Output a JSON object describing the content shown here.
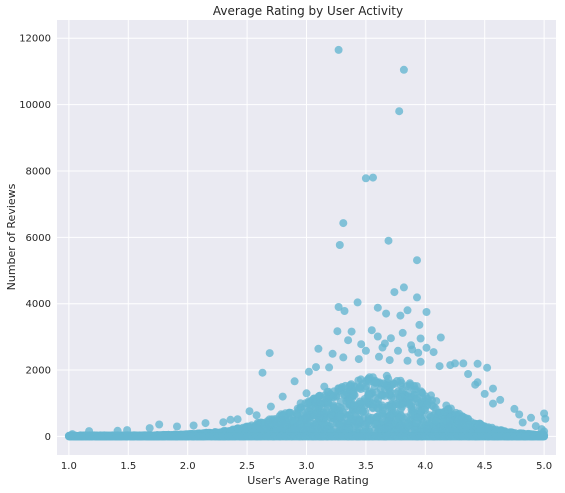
{
  "chart_data": {
    "type": "scatter",
    "title": "Average Rating by User Activity",
    "xlabel": "User's Average Rating",
    "ylabel": "Number of Reviews",
    "xlim": [
      0.9,
      5.1
    ],
    "ylim": [
      -560,
      12550
    ],
    "xticks": [
      1.0,
      1.5,
      2.0,
      2.5,
      3.0,
      3.5,
      4.0,
      4.5,
      5.0
    ],
    "xtick_labels": [
      "1.0",
      "1.5",
      "2.0",
      "2.5",
      "3.0",
      "3.5",
      "4.0",
      "4.5",
      "5.0"
    ],
    "yticks": [
      0,
      2000,
      4000,
      6000,
      8000,
      10000,
      12000
    ],
    "ytick_labels": [
      "0",
      "2000",
      "4000",
      "6000",
      "8000",
      "10000",
      "12000"
    ],
    "grid": true,
    "colors": {
      "background": "#eaeaf2",
      "grid": "#ffffff",
      "marker": "#67b7d1"
    },
    "marker_opacity": 0.8,
    "series": [
      {
        "points": [
          [
            3.27,
            11650
          ],
          [
            3.82,
            11050
          ],
          [
            3.78,
            9800
          ],
          [
            3.5,
            7780
          ],
          [
            3.56,
            7800
          ],
          [
            3.31,
            6430
          ],
          [
            3.28,
            5770
          ],
          [
            3.69,
            5900
          ],
          [
            3.93,
            5310
          ],
          [
            3.82,
            4490
          ],
          [
            3.43,
            4040
          ],
          [
            3.93,
            4190
          ],
          [
            3.74,
            4350
          ],
          [
            3.27,
            3900
          ],
          [
            4.01,
            3750
          ],
          [
            3.6,
            3880
          ],
          [
            3.67,
            3700
          ],
          [
            3.32,
            3780
          ],
          [
            3.85,
            3800
          ],
          [
            3.79,
            3640
          ],
          [
            3.95,
            3360
          ],
          [
            3.38,
            3160
          ],
          [
            3.26,
            3170
          ],
          [
            3.55,
            3200
          ],
          [
            3.81,
            3120
          ],
          [
            3.71,
            2960
          ],
          [
            3.6,
            3010
          ],
          [
            3.96,
            2950
          ],
          [
            4.13,
            2980
          ],
          [
            3.35,
            2900
          ],
          [
            3.46,
            2780
          ],
          [
            3.66,
            2800
          ],
          [
            3.88,
            2750
          ],
          [
            3.64,
            2680
          ],
          [
            3.89,
            2620
          ],
          [
            3.1,
            2640
          ],
          [
            4.01,
            2670
          ],
          [
            2.69,
            2510
          ],
          [
            3.22,
            2490
          ],
          [
            3.5,
            2580
          ],
          [
            3.77,
            2580
          ],
          [
            3.94,
            2520
          ],
          [
            4.07,
            2540
          ],
          [
            3.61,
            2400
          ],
          [
            3.31,
            2380
          ],
          [
            3.44,
            2330
          ],
          [
            3.7,
            2300
          ],
          [
            3.85,
            2280
          ],
          [
            3.96,
            2250
          ],
          [
            4.25,
            2200
          ],
          [
            4.32,
            2200
          ],
          [
            4.44,
            2190
          ],
          [
            4.21,
            2150
          ],
          [
            4.12,
            2120
          ],
          [
            4.52,
            2070
          ],
          [
            3.19,
            2080
          ],
          [
            3.08,
            2090
          ],
          [
            2.63,
            1920
          ],
          [
            2.9,
            1660
          ],
          [
            3.02,
            1950
          ],
          [
            4.36,
            1880
          ],
          [
            4.44,
            1630
          ],
          [
            4.42,
            1560
          ],
          [
            4.57,
            1440
          ],
          [
            4.63,
            1100
          ],
          [
            4.5,
            1280
          ],
          [
            4.57,
            990
          ],
          [
            4.75,
            830
          ],
          [
            4.79,
            660
          ],
          [
            5.0,
            690
          ],
          [
            5.01,
            530
          ],
          [
            4.89,
            560
          ],
          [
            4.82,
            420
          ],
          [
            4.93,
            310
          ],
          [
            4.98,
            220
          ],
          [
            2.52,
            760
          ],
          [
            2.58,
            640
          ],
          [
            2.42,
            520
          ],
          [
            2.36,
            500
          ],
          [
            2.3,
            430
          ],
          [
            2.15,
            400
          ],
          [
            2.05,
            330
          ],
          [
            1.91,
            300
          ],
          [
            1.76,
            360
          ],
          [
            1.68,
            250
          ],
          [
            1.49,
            190
          ],
          [
            1.41,
            170
          ],
          [
            1.17,
            160
          ],
          [
            1.03,
            70
          ],
          [
            1.02,
            40
          ],
          [
            5.0,
            150
          ],
          [
            4.99,
            90
          ],
          [
            5.0,
            40
          ],
          [
            1.0,
            20
          ],
          [
            3.0,
            1300
          ],
          [
            2.8,
            1200
          ],
          [
            2.95,
            1000
          ],
          [
            2.7,
            900
          ],
          [
            3.15,
            1500
          ]
        ],
        "band": {
          "x_min": 1.0,
          "x_max": 5.0,
          "peak_x": 3.65,
          "peak_height": 1800,
          "left_spread": 0.6,
          "right_spread": 0.45
        }
      }
    ]
  }
}
